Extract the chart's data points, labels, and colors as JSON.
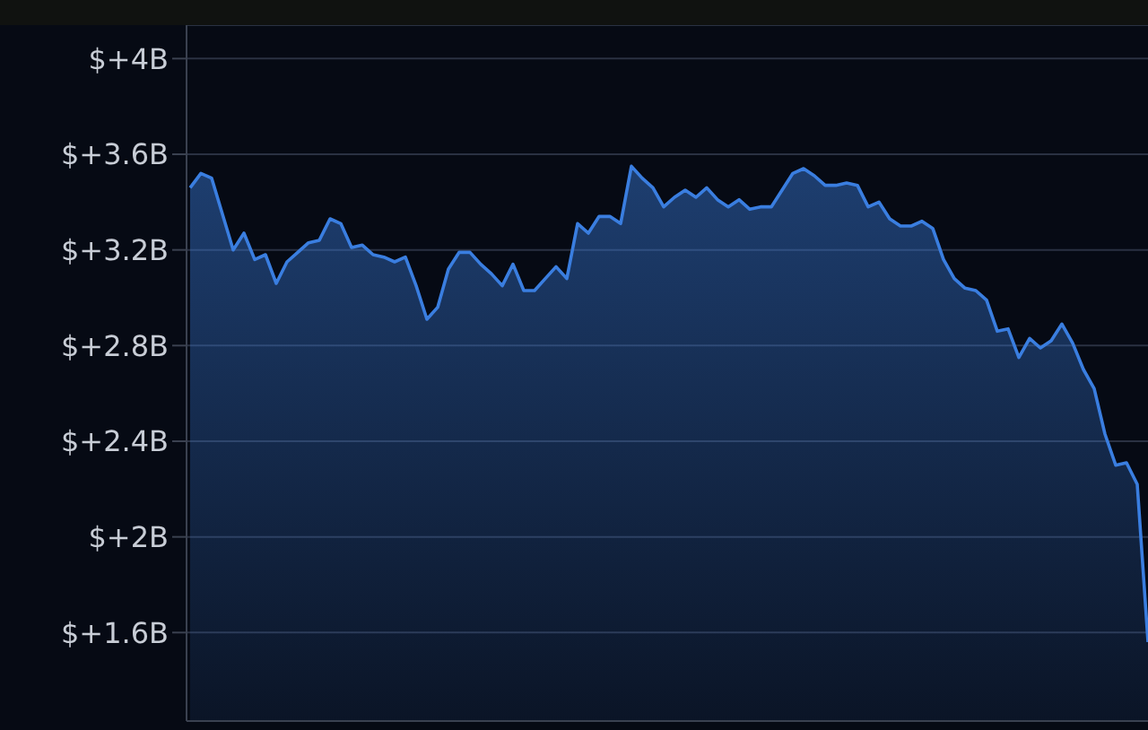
{
  "chart_data": {
    "type": "area",
    "categories": [
      null,
      null,
      null,
      null,
      null,
      null,
      null,
      null,
      null,
      null,
      null,
      null,
      null,
      null,
      null,
      null,
      null,
      null,
      null,
      null,
      null,
      null,
      null,
      null,
      null,
      null,
      null,
      null,
      null,
      null,
      null,
      null,
      null,
      null,
      null,
      null,
      null,
      null,
      null,
      null,
      null,
      null,
      null,
      null,
      null,
      null,
      null,
      null,
      null,
      null,
      null,
      null,
      null,
      null,
      null,
      null,
      null,
      null,
      null,
      null,
      null,
      null,
      null,
      null,
      null,
      null,
      null,
      null,
      null,
      null,
      null,
      null,
      null,
      null,
      null,
      null,
      null,
      null,
      null,
      null,
      null,
      null,
      null,
      null,
      null,
      null,
      null,
      null,
      null,
      null
    ],
    "series": [
      {
        "color": "#3a7ee0",
        "values": [
          3.46,
          3.52,
          3.5,
          3.35,
          3.2,
          3.27,
          3.16,
          3.18,
          3.06,
          3.15,
          3.19,
          3.23,
          3.24,
          3.33,
          3.31,
          3.21,
          3.22,
          3.18,
          3.17,
          3.15,
          3.17,
          3.05,
          2.91,
          2.96,
          3.12,
          3.19,
          3.19,
          3.14,
          3.1,
          3.05,
          3.14,
          3.03,
          3.03,
          3.08,
          3.13,
          3.08,
          3.31,
          3.27,
          3.34,
          3.34,
          3.31,
          3.55,
          3.5,
          3.46,
          3.38,
          3.42,
          3.45,
          3.42,
          3.46,
          3.41,
          3.38,
          3.41,
          3.37,
          3.38,
          3.38,
          3.45,
          3.52,
          3.54,
          3.51,
          3.47,
          3.47,
          3.48,
          3.47,
          3.38,
          3.4,
          3.33,
          3.3,
          3.3,
          3.32,
          3.29,
          3.16,
          3.08,
          3.04,
          3.03,
          2.99,
          2.86,
          2.87,
          2.75,
          2.83,
          2.79,
          2.82,
          2.89,
          2.81,
          2.7,
          2.62,
          2.43,
          2.3,
          2.31,
          2.22,
          1.56
        ]
      }
    ],
    "ylim": [
      1.23,
      4.14
    ],
    "yticks": [
      {
        "value": 1.6,
        "label": "$+1.6B"
      },
      {
        "value": 2,
        "label": "$+2B"
      },
      {
        "value": 2.4,
        "label": "$+2.4B"
      },
      {
        "value": 2.8,
        "label": "$+2.8B"
      },
      {
        "value": 3.2,
        "label": "$+3.2B"
      },
      {
        "value": 3.6,
        "label": "$+3.6B"
      },
      {
        "value": 4,
        "label": "$+4B"
      }
    ],
    "grid": "y",
    "tick_labels": "y"
  }
}
